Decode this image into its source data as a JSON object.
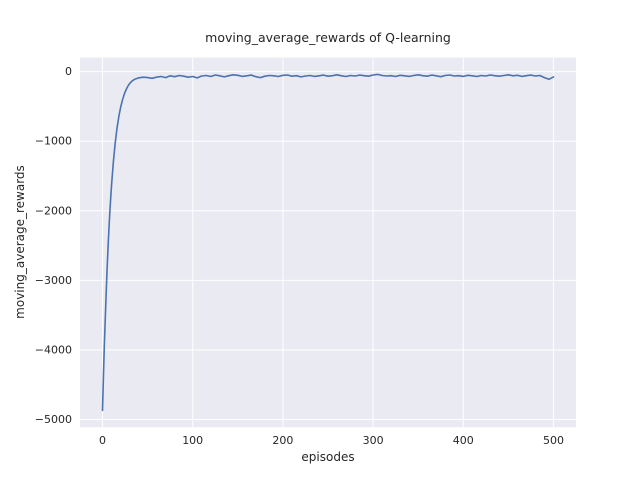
{
  "chart_data": {
    "type": "line",
    "title": "moving_average_rewards of Q-learning",
    "xlabel": "episodes",
    "ylabel": "moving_average_rewards",
    "xlim": [
      -25,
      525
    ],
    "ylim": [
      -5111,
      202
    ],
    "xtick_values": [
      0,
      100,
      200,
      300,
      400,
      500
    ],
    "xtick_labels": [
      "0",
      "100",
      "200",
      "300",
      "400",
      "500"
    ],
    "ytick_values": [
      0,
      -1000,
      -2000,
      -3000,
      -4000,
      -5000
    ],
    "ytick_labels": [
      "0",
      "−1000",
      "−2000",
      "−3000",
      "−4000",
      "−5000"
    ],
    "grid": true,
    "legend": "none",
    "line_color": "#4c72b0",
    "plot_background": "#eaeaf2",
    "grid_color": "#ffffff",
    "text_color": "#262626",
    "series": [
      {
        "name": "moving_average_rewards",
        "x": [
          0,
          1,
          2,
          3,
          4,
          5,
          6,
          7,
          8,
          9,
          10,
          12,
          14,
          16,
          18,
          20,
          22,
          24,
          26,
          28,
          30,
          33,
          36,
          40,
          45,
          50,
          55,
          60,
          65,
          70,
          75,
          80,
          85,
          90,
          95,
          100,
          105,
          110,
          115,
          120,
          125,
          130,
          135,
          140,
          145,
          150,
          155,
          160,
          165,
          170,
          175,
          180,
          185,
          190,
          195,
          200,
          205,
          210,
          215,
          220,
          225,
          230,
          235,
          240,
          245,
          250,
          255,
          260,
          265,
          270,
          275,
          280,
          285,
          290,
          295,
          300,
          305,
          310,
          315,
          320,
          325,
          330,
          335,
          340,
          345,
          350,
          355,
          360,
          365,
          370,
          375,
          380,
          385,
          390,
          395,
          400,
          405,
          410,
          415,
          420,
          425,
          430,
          435,
          440,
          445,
          450,
          455,
          460,
          465,
          470,
          475,
          480,
          485,
          490,
          495,
          500
        ],
        "y": [
          -4870,
          -4400,
          -3950,
          -3540,
          -3170,
          -2840,
          -2540,
          -2270,
          -2030,
          -1815,
          -1620,
          -1290,
          -1025,
          -815,
          -648,
          -515,
          -410,
          -327,
          -262,
          -211,
          -172,
          -132,
          -107,
          -90,
          -80,
          -86,
          -95,
          -78,
          -70,
          -85,
          -60,
          -72,
          -55,
          -65,
          -80,
          -70,
          -90,
          -62,
          -55,
          -70,
          -48,
          -60,
          -75,
          -58,
          -45,
          -52,
          -68,
          -60,
          -50,
          -72,
          -85,
          -65,
          -55,
          -60,
          -70,
          -52,
          -48,
          -66,
          -58,
          -75,
          -62,
          -55,
          -68,
          -60,
          -50,
          -65,
          -58,
          -45,
          -60,
          -70,
          -55,
          -62,
          -50,
          -58,
          -66,
          -48,
          -40,
          -55,
          -62,
          -58,
          -70,
          -52,
          -60,
          -68,
          -55,
          -45,
          -58,
          -65,
          -50,
          -60,
          -72,
          -55,
          -48,
          -62,
          -58,
          -68,
          -52,
          -60,
          -70,
          -55,
          -62,
          -48,
          -58,
          -66,
          -55,
          -45,
          -60,
          -52,
          -68,
          -58,
          -50,
          -62,
          -55,
          -85,
          -110,
          -75
        ]
      }
    ]
  }
}
